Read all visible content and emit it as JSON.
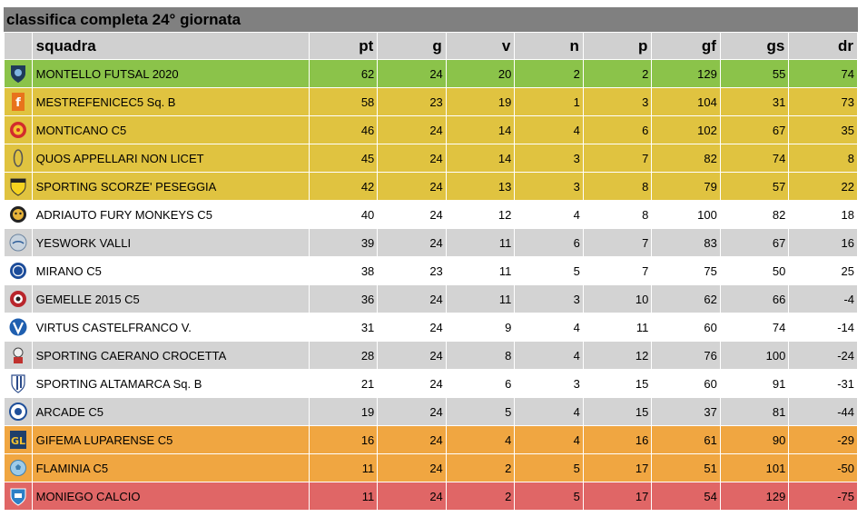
{
  "title": "classifica completa 24° giornata",
  "columns": {
    "team": "squadra",
    "pt": "pt",
    "g": "g",
    "v": "v",
    "n": "n",
    "p": "p",
    "gf": "gf",
    "gs": "gs",
    "dr": "dr"
  },
  "colors": {
    "promotion": "#8bc34a",
    "playoff": "#e0c340",
    "neutral_white": "#ffffff",
    "neutral_grey": "#d3d3d3",
    "playout": "#f0a641",
    "relegation": "#e06666"
  },
  "rows": [
    {
      "team": "MONTELLO FUTSAL 2020",
      "pt": "62",
      "g": "24",
      "v": "20",
      "n": "2",
      "p": "2",
      "gf": "129",
      "gs": "55",
      "dr": "74",
      "zone": "promotion",
      "logo": "shield-logo-icon"
    },
    {
      "team": "MESTREFENICEC5 Sq. B",
      "pt": "58",
      "g": "23",
      "v": "19",
      "n": "1",
      "p": "3",
      "gf": "104",
      "gs": "31",
      "dr": "73",
      "zone": "playoff",
      "logo": "f-letter-logo-icon"
    },
    {
      "team": "MONTICANO C5",
      "pt": "46",
      "g": "24",
      "v": "14",
      "n": "4",
      "p": "6",
      "gf": "102",
      "gs": "67",
      "dr": "35",
      "zone": "playoff",
      "logo": "round-crest-logo-icon"
    },
    {
      "team": "QUOS APPELLARI NON LICET",
      "pt": "45",
      "g": "24",
      "v": "14",
      "n": "3",
      "p": "7",
      "gf": "82",
      "gs": "74",
      "dr": "8",
      "zone": "playoff",
      "logo": "oval-logo-icon"
    },
    {
      "team": "SPORTING SCORZE' PESEGGIA",
      "pt": "42",
      "g": "24",
      "v": "13",
      "n": "3",
      "p": "8",
      "gf": "79",
      "gs": "57",
      "dr": "22",
      "zone": "playoff",
      "logo": "yellow-shield-logo-icon"
    },
    {
      "team": "ADRIAUTO FURY MONKEYS C5",
      "pt": "40",
      "g": "24",
      "v": "12",
      "n": "4",
      "p": "8",
      "gf": "100",
      "gs": "82",
      "dr": "18",
      "zone": "neutral_white",
      "logo": "monkey-logo-icon"
    },
    {
      "team": "YESWORK VALLI",
      "pt": "39",
      "g": "24",
      "v": "11",
      "n": "6",
      "p": "7",
      "gf": "83",
      "gs": "67",
      "dr": "16",
      "zone": "neutral_grey",
      "logo": "grey-badge-logo-icon"
    },
    {
      "team": "MIRANO C5",
      "pt": "38",
      "g": "23",
      "v": "11",
      "n": "5",
      "p": "7",
      "gf": "75",
      "gs": "50",
      "dr": "25",
      "zone": "neutral_white",
      "logo": "blue-circle-logo-icon"
    },
    {
      "team": "GEMELLE 2015 C5",
      "pt": "36",
      "g": "24",
      "v": "11",
      "n": "3",
      "p": "10",
      "gf": "62",
      "gs": "66",
      "dr": "-4",
      "zone": "neutral_grey",
      "logo": "red-crest-logo-icon"
    },
    {
      "team": "VIRTUS CASTELFRANCO V.",
      "pt": "31",
      "g": "24",
      "v": "9",
      "n": "4",
      "p": "11",
      "gf": "60",
      "gs": "74",
      "dr": "-14",
      "zone": "neutral_white",
      "logo": "v-letter-logo-icon"
    },
    {
      "team": "SPORTING CAERANO CROCETTA",
      "pt": "28",
      "g": "24",
      "v": "8",
      "n": "4",
      "p": "12",
      "gf": "76",
      "gs": "100",
      "dr": "-24",
      "zone": "neutral_grey",
      "logo": "mascot-logo-icon"
    },
    {
      "team": "SPORTING ALTAMARCA Sq. B",
      "pt": "21",
      "g": "24",
      "v": "6",
      "n": "3",
      "p": "15",
      "gf": "60",
      "gs": "91",
      "dr": "-31",
      "zone": "neutral_white",
      "logo": "striped-shield-logo-icon"
    },
    {
      "team": "ARCADE C5",
      "pt": "19",
      "g": "24",
      "v": "5",
      "n": "4",
      "p": "15",
      "gf": "37",
      "gs": "81",
      "dr": "-44",
      "zone": "neutral_grey",
      "logo": "arcade-circle-logo-icon"
    },
    {
      "team": "GIFEMA LUPARENSE C5",
      "pt": "16",
      "g": "24",
      "v": "4",
      "n": "4",
      "p": "16",
      "gf": "61",
      "gs": "90",
      "dr": "-29",
      "zone": "playout",
      "logo": "gl-letters-logo-icon"
    },
    {
      "team": "FLAMINIA C5",
      "pt": "11",
      "g": "24",
      "v": "2",
      "n": "5",
      "p": "17",
      "gf": "51",
      "gs": "101",
      "dr": "-50",
      "zone": "playout",
      "logo": "ball-logo-icon"
    },
    {
      "team": "MONIEGO CALCIO",
      "pt": "11",
      "g": "24",
      "v": "2",
      "n": "5",
      "p": "17",
      "gf": "54",
      "gs": "129",
      "dr": "-75",
      "zone": "relegation",
      "logo": "blue-shield-logo-icon"
    }
  ]
}
